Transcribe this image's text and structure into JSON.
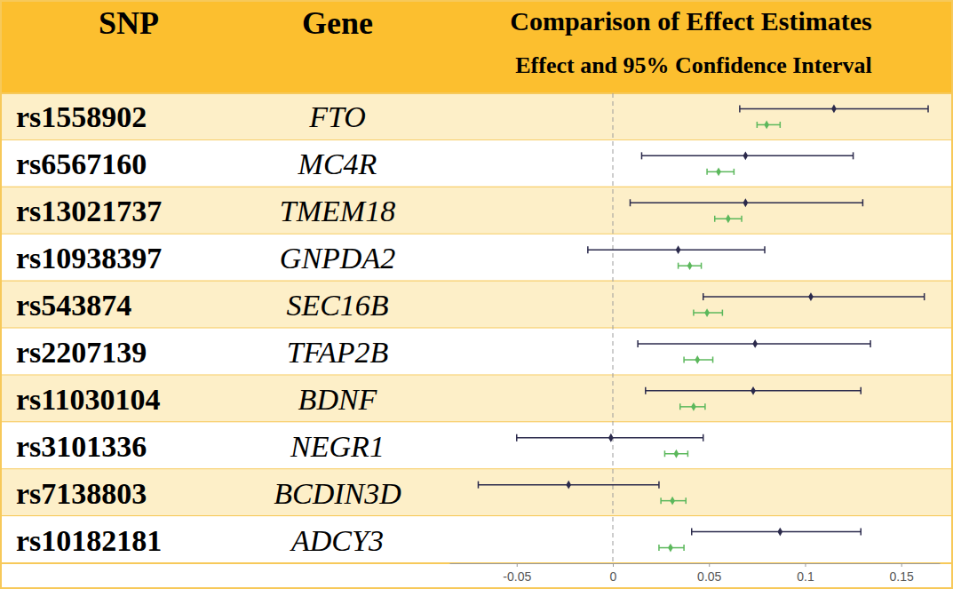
{
  "chart_data": {
    "type": "forest",
    "title": "Comparison of Effect Estimates",
    "subtitle": "Effect and 95% Confidence Interval",
    "columns": [
      "SNP",
      "Gene"
    ],
    "categories": [
      "rs1558902",
      "rs6567160",
      "rs13021737",
      "rs10938397",
      "rs543874",
      "rs2207139",
      "rs11030104",
      "rs3101336",
      "rs7138803",
      "rs10182181"
    ],
    "genes": [
      "FTO",
      "MC4R",
      "TMEM18",
      "GNPDA2",
      "SEC16B",
      "TFAP2B",
      "BDNF",
      "NEGR1",
      "BCDIN3D",
      "ADCY3"
    ],
    "series": [
      {
        "color": "#2b2a4c",
        "marker": "diamond",
        "values": [
          0.115,
          0.069,
          0.069,
          0.034,
          0.103,
          0.074,
          0.073,
          -0.001,
          -0.023,
          0.087
        ],
        "lower": [
          0.066,
          0.015,
          0.009,
          -0.013,
          0.047,
          0.013,
          0.017,
          -0.05,
          -0.07,
          0.041
        ],
        "upper": [
          0.164,
          0.125,
          0.13,
          0.079,
          0.162,
          0.134,
          0.129,
          0.047,
          0.024,
          0.129
        ]
      },
      {
        "color": "#5cb85c",
        "marker": "diamond",
        "values": [
          0.08,
          0.055,
          0.06,
          0.04,
          0.049,
          0.044,
          0.042,
          0.033,
          0.031,
          0.03
        ],
        "lower": [
          0.075,
          0.049,
          0.053,
          0.034,
          0.042,
          0.037,
          0.035,
          0.027,
          0.025,
          0.024
        ],
        "upper": [
          0.087,
          0.063,
          0.067,
          0.046,
          0.057,
          0.052,
          0.048,
          0.039,
          0.038,
          0.037
        ]
      }
    ],
    "null_line": 0,
    "xlim": [
      -0.085,
      0.17
    ],
    "xticks": [
      -0.05,
      0,
      0.05,
      0.1,
      0.15
    ],
    "grid": false
  }
}
